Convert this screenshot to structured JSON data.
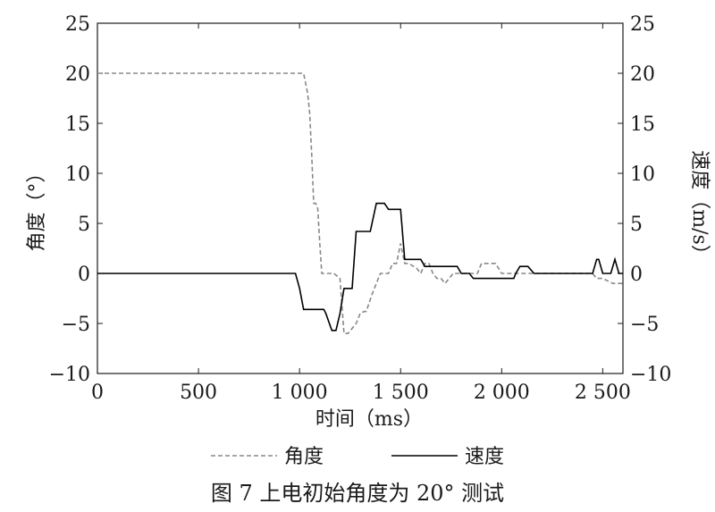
{
  "chart_data": {
    "type": "line",
    "caption": "图 7   上电初始角度为 20° 测试",
    "xlabel": "时间（ms）",
    "ylabel_left": "角度（°）",
    "ylabel_right": "速度（m/s）",
    "xlim": [
      0,
      2600
    ],
    "ylim_left": [
      -10,
      25
    ],
    "ylim_right": [
      -10,
      25
    ],
    "grid": false,
    "legend_position": "bottom-center",
    "x_ticks": [
      0,
      500,
      1000,
      1500,
      2000,
      2500
    ],
    "x_tick_labels": [
      "0",
      "500",
      "1 000",
      "1 500",
      "2 000",
      "2 500"
    ],
    "y_ticks": [
      -10,
      -5,
      0,
      5,
      10,
      15,
      20,
      25
    ],
    "y_tick_labels": [
      "−10",
      "−5",
      "0",
      "5",
      "10",
      "15",
      "20",
      "25"
    ],
    "series": [
      {
        "name": "角度",
        "line_style": "dashed",
        "color": "#888888",
        "x": [
          0,
          1000,
          1020,
          1040,
          1050,
          1060,
          1070,
          1080,
          1090,
          1100,
          1110,
          1120,
          1140,
          1170,
          1200,
          1220,
          1240,
          1280,
          1300,
          1320,
          1330,
          1360,
          1400,
          1420,
          1440,
          1460,
          1480,
          1500,
          1520,
          1540,
          1580,
          1600,
          1620,
          1640,
          1660,
          1680,
          1700,
          1720,
          1760,
          1800,
          1840,
          1880,
          1900,
          1920,
          1940,
          1970,
          2000,
          2050,
          2100,
          2140,
          2200,
          2300,
          2400,
          2450,
          2470,
          2500,
          2550,
          2580,
          2600
        ],
        "values": [
          20,
          20,
          20,
          18,
          16,
          12,
          7,
          7,
          6.5,
          3,
          0,
          0,
          0,
          0,
          -0.5,
          -6,
          -6,
          -5,
          -4,
          -3.8,
          -3.8,
          -2,
          0,
          0,
          0,
          1,
          1,
          3,
          1,
          1,
          0.5,
          0,
          1,
          1,
          0,
          -0.5,
          -0.5,
          -1,
          0,
          0,
          0,
          0,
          1,
          1,
          1,
          1,
          0,
          0,
          0,
          0,
          0,
          0,
          0,
          0,
          -0.5,
          -0.5,
          -1,
          -1,
          -1
        ]
      },
      {
        "name": "速度",
        "line_style": "solid",
        "color": "#000000",
        "x": [
          0,
          980,
          1000,
          1020,
          1040,
          1100,
          1120,
          1130,
          1160,
          1180,
          1200,
          1220,
          1240,
          1260,
          1280,
          1300,
          1330,
          1350,
          1380,
          1420,
          1440,
          1460,
          1500,
          1520,
          1540,
          1580,
          1600,
          1620,
          1680,
          1720,
          1740,
          1780,
          1800,
          1840,
          1860,
          1880,
          1900,
          1960,
          2040,
          2060,
          2070,
          2090,
          2110,
          2130,
          2160,
          2200,
          2300,
          2400,
          2440,
          2450,
          2470,
          2480,
          2500,
          2520,
          2540,
          2560,
          2580,
          2600
        ],
        "values": [
          0,
          0,
          -1.5,
          -3.6,
          -3.6,
          -3.6,
          -3.6,
          -4,
          -5.7,
          -5.7,
          -4,
          -1.5,
          -1.5,
          -1.5,
          4.2,
          4.2,
          4.2,
          4.2,
          7,
          7,
          6.4,
          6.4,
          6.4,
          1.4,
          1.4,
          1.4,
          1.4,
          0.7,
          0.7,
          0.7,
          0.7,
          0.7,
          0,
          0,
          -0.5,
          -0.5,
          -0.5,
          -0.5,
          -0.5,
          -0.5,
          0,
          0.7,
          0.7,
          0.7,
          0,
          0,
          0,
          0,
          0,
          0,
          1.4,
          1.4,
          0,
          0,
          0,
          1.4,
          0,
          0
        ]
      }
    ]
  }
}
